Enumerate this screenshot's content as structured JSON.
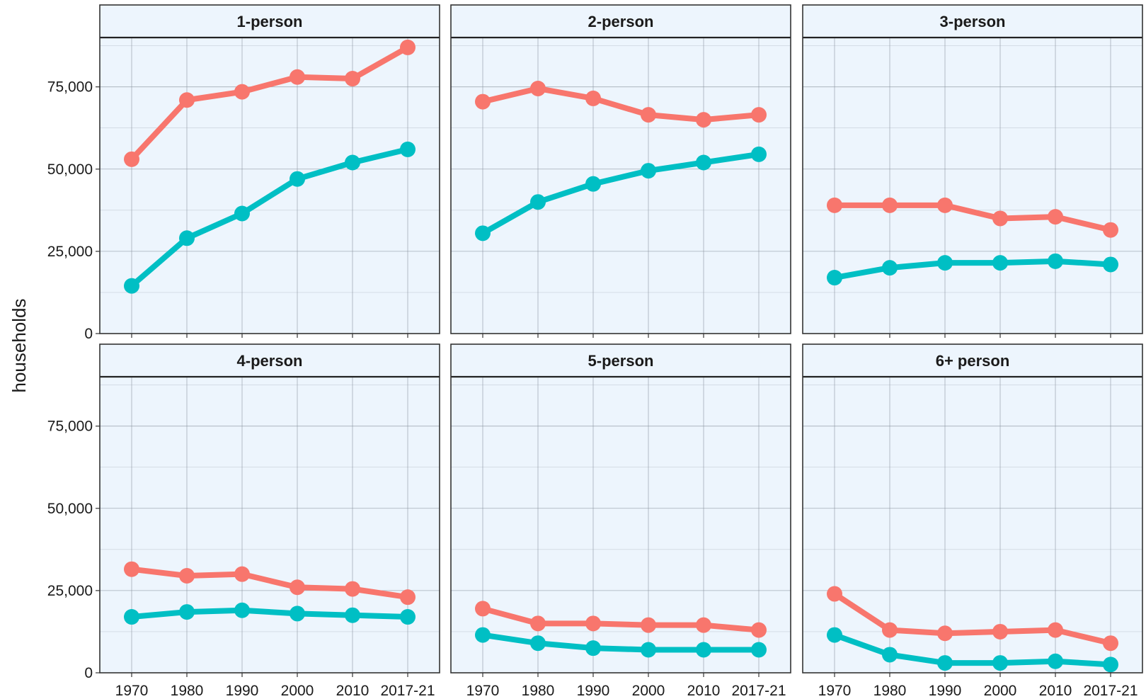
{
  "chart_data": {
    "type": "line",
    "facet_layout": "2x3",
    "x": [
      "1970",
      "1980",
      "1990",
      "2000",
      "2010",
      "2017-21"
    ],
    "ylabel": "households",
    "ylim": [
      0,
      90000
    ],
    "yticks": [
      0,
      25000,
      50000,
      75000
    ],
    "ytick_labels": [
      "0",
      "25,000",
      "50,000",
      "75,000"
    ],
    "grid": true,
    "legend": "none",
    "colors": {
      "series_a": "#f8766d",
      "series_b": "#00bfc4",
      "panel_background": "#edf5fd",
      "strip_background": "#edf5fd"
    },
    "panels": [
      {
        "title": "1-person",
        "series": [
          {
            "color": "#f8766d",
            "values": [
              53000,
              71000,
              73500,
              78000,
              77500,
              87000
            ]
          },
          {
            "color": "#00bfc4",
            "values": [
              14500,
              29000,
              36500,
              47000,
              52000,
              56000
            ]
          }
        ]
      },
      {
        "title": "2-person",
        "series": [
          {
            "color": "#f8766d",
            "values": [
              70500,
              74500,
              71500,
              66500,
              65000,
              66500
            ]
          },
          {
            "color": "#00bfc4",
            "values": [
              30500,
              40000,
              45500,
              49500,
              52000,
              54500
            ]
          }
        ]
      },
      {
        "title": "3-person",
        "series": [
          {
            "color": "#f8766d",
            "values": [
              39000,
              39000,
              39000,
              35000,
              35500,
              31500
            ]
          },
          {
            "color": "#00bfc4",
            "values": [
              17000,
              20000,
              21500,
              21500,
              22000,
              21000
            ]
          }
        ]
      },
      {
        "title": "4-person",
        "series": [
          {
            "color": "#f8766d",
            "values": [
              31500,
              29500,
              30000,
              26000,
              25500,
              23000
            ]
          },
          {
            "color": "#00bfc4",
            "values": [
              17000,
              18500,
              19000,
              18000,
              17500,
              17000
            ]
          }
        ]
      },
      {
        "title": "5-person",
        "series": [
          {
            "color": "#f8766d",
            "values": [
              19500,
              15000,
              15000,
              14500,
              14500,
              13000
            ]
          },
          {
            "color": "#00bfc4",
            "values": [
              11500,
              9000,
              7500,
              7000,
              7000,
              7000
            ]
          }
        ]
      },
      {
        "title": "6+ person",
        "series": [
          {
            "color": "#f8766d",
            "values": [
              24000,
              13000,
              12000,
              12500,
              13000,
              9000
            ]
          },
          {
            "color": "#00bfc4",
            "values": [
              11500,
              5500,
              3000,
              3000,
              3500,
              2500
            ]
          }
        ]
      }
    ]
  }
}
